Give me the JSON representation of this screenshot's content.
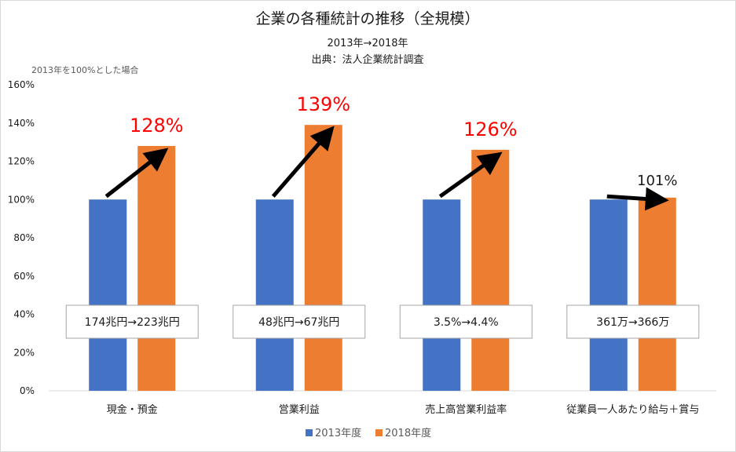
{
  "chart_data": {
    "type": "bar",
    "title": "企業の各種統計の推移（全規模）",
    "subtitle": "2013年→2018年",
    "source": "出典：法人企業統計調査",
    "note": "2013年を100%とした場合",
    "categories": [
      "現金・預金",
      "営業利益",
      "売上高営業利益率",
      "従業員一人あたり給与＋賞与"
    ],
    "series": [
      {
        "name": "2013年度",
        "color": "#4472c4",
        "values": [
          100,
          100,
          100,
          100
        ]
      },
      {
        "name": "2018年度",
        "color": "#ed7d31",
        "values": [
          128,
          139,
          126,
          101
        ]
      }
    ],
    "y_ticks": [
      "0%",
      "20%",
      "40%",
      "60%",
      "80%",
      "100%",
      "120%",
      "140%",
      "160%"
    ],
    "ylim": [
      0,
      160
    ],
    "grid": false,
    "legend": "bottom",
    "change_labels": [
      "128%",
      "139%",
      "126%",
      "101%"
    ],
    "change_label_colors": [
      "#ff0000",
      "#ff0000",
      "#ff0000",
      "#1a1a1a"
    ],
    "value_boxes": [
      "174兆円→223兆円",
      "48兆円→67兆円",
      "3.5%→4.4%",
      "361万→366万"
    ]
  }
}
